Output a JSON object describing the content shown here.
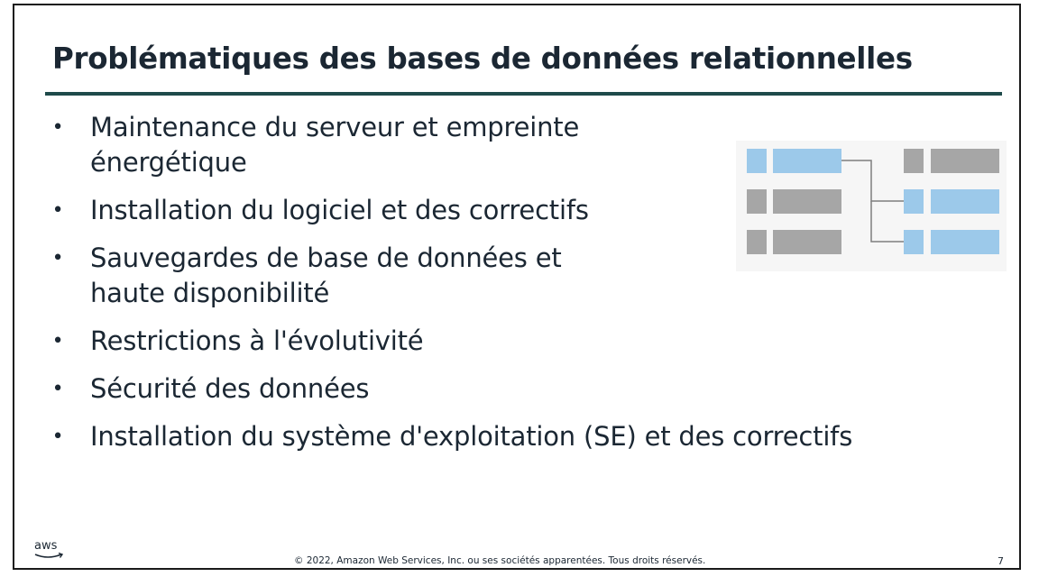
{
  "slide": {
    "title": "Problématiques des bases de données relationnelles",
    "bullets": [
      {
        "text": "Maintenance du serveur et empreinte énergétique"
      },
      {
        "text": "Installation du logiciel et des correctifs"
      },
      {
        "text": "Sauvegardes de base de données et haute disponibilité"
      },
      {
        "text": "Restrictions à l'évolutivité"
      },
      {
        "text": "Sécurité des données"
      },
      {
        "text": "Installation du système d'exploitation (SE) et des correctifs"
      }
    ],
    "bullet_symbol": "•",
    "diagram": {
      "highlight_color": "#9cc9ea",
      "neutral_color": "#a6a6a6",
      "connector_color": "#7f7f7f"
    },
    "footer": {
      "logo_text": "aws",
      "copyright": "© 2022, Amazon Web Services, Inc. ou ses sociétés apparentées. Tous droits réservés.",
      "page_number": "7"
    }
  }
}
